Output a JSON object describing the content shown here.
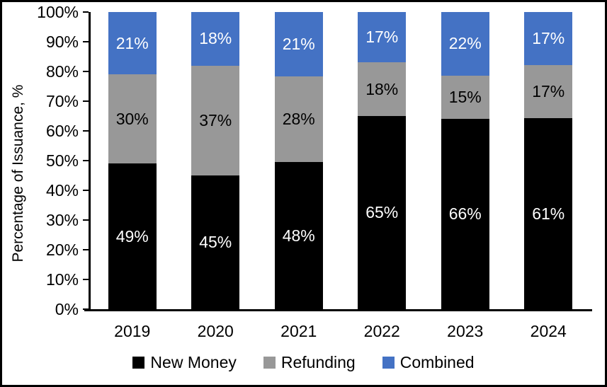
{
  "figure": {
    "background_color": "#ffffff",
    "border_color": "#000000",
    "axis_color": "#000000"
  },
  "chart_data": {
    "type": "bar",
    "stacked": true,
    "title": "",
    "xlabel": "",
    "ylabel": "Percentage of Issuance, %",
    "ylim": [
      0,
      100
    ],
    "y_tick_step": 10,
    "y_tick_labels": [
      "0%",
      "10%",
      "20%",
      "30%",
      "40%",
      "50%",
      "60%",
      "70%",
      "80%",
      "90%",
      "100%"
    ],
    "grid": false,
    "legend_position": "bottom",
    "data_label_suffix": "%",
    "categories": [
      "2019",
      "2020",
      "2021",
      "2022",
      "2023",
      "2024"
    ],
    "series": [
      {
        "name": "New Money",
        "color": "#000000",
        "label_color": "#ffffff",
        "values": [
          49,
          45,
          48,
          65,
          66,
          61
        ]
      },
      {
        "name": "Refunding",
        "color": "#989898",
        "label_color": "#000000",
        "values": [
          30,
          37,
          28,
          18,
          15,
          17
        ]
      },
      {
        "name": "Combined",
        "color": "#4472C4",
        "label_color": "#ffffff",
        "values": [
          21,
          18,
          21,
          17,
          22,
          17
        ]
      }
    ]
  }
}
